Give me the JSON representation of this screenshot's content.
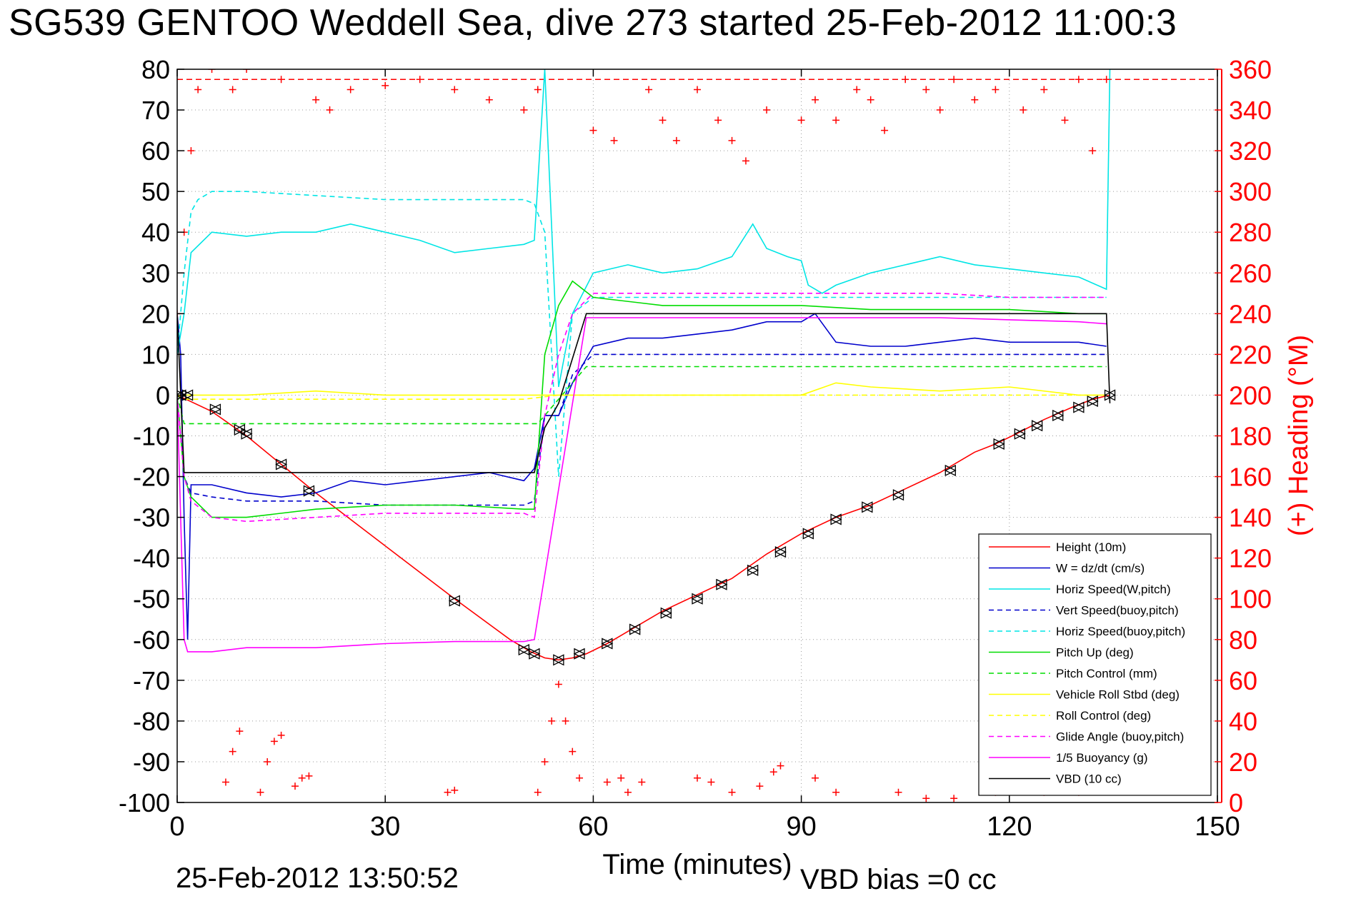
{
  "title": "SG539 GENTOO Weddell Sea, dive 273 started 25-Feb-2012 11:00:3",
  "footer": {
    "timestamp": "25-Feb-2012 13:50:52",
    "vbd_bias": "VBD bias =0 cc"
  },
  "colors": {
    "height": "#ff0000",
    "w": "#0000cc",
    "horiz": "#00e5e5",
    "pitch": "#00dd00",
    "roll": "#ffff00",
    "glide": "#ff00ff",
    "buoy": "#ff00ff",
    "vbd": "#000000",
    "heading": "#ff0000"
  },
  "chart_data": {
    "type": "line",
    "xlabel": "Time (minutes)",
    "ylabel": "",
    "y2label": "(+) Heading (°M)",
    "xlim": [
      0,
      150
    ],
    "ylim": [
      -100,
      80
    ],
    "y2lim": [
      0,
      360
    ],
    "xticks": [
      0,
      30,
      60,
      90,
      120,
      150
    ],
    "yticks": [
      80,
      70,
      60,
      50,
      40,
      30,
      20,
      10,
      0,
      -10,
      -20,
      -30,
      -40,
      -50,
      -60,
      -70,
      -80,
      -90,
      -100
    ],
    "y2ticks": [
      360,
      340,
      320,
      300,
      280,
      260,
      240,
      220,
      200,
      180,
      160,
      140,
      120,
      100,
      80,
      60,
      40,
      20,
      0
    ],
    "grid": true,
    "legend_position": "bottom-right",
    "series": [
      {
        "name": "Height (10m)",
        "key": "height",
        "style": "solid",
        "x": [
          0,
          5,
          10,
          15,
          20,
          30,
          40,
          48,
          51,
          53,
          55,
          57,
          59,
          62,
          66,
          70,
          75,
          80,
          85,
          90,
          95,
          100,
          105,
          110,
          115,
          118,
          121,
          125,
          129,
          132,
          134.5
        ],
        "y": [
          0,
          -4,
          -10,
          -17,
          -24,
          -37,
          -50,
          -60,
          -63,
          -64.5,
          -65,
          -64.5,
          -63.5,
          -61,
          -57,
          -53,
          -49,
          -45,
          -39,
          -34,
          -30,
          -27,
          -23,
          -19,
          -14,
          -12,
          -9.5,
          -6,
          -3,
          -1,
          0
        ]
      },
      {
        "name": "W = dz/dt (cm/s)",
        "key": "w",
        "style": "solid",
        "x": [
          0,
          0.5,
          1,
          1.5,
          2,
          5,
          10,
          15,
          20,
          25,
          30,
          35,
          40,
          45,
          50,
          51.5,
          53,
          55,
          57,
          60,
          65,
          70,
          75,
          80,
          85,
          90,
          92,
          95,
          100,
          105,
          110,
          115,
          120,
          125,
          130,
          134
        ],
        "y": [
          20,
          10,
          -30,
          -60,
          -22,
          -22,
          -24,
          -25,
          -24,
          -21,
          -22,
          -21,
          -20,
          -19,
          -21,
          -18,
          -5,
          -5,
          3,
          12,
          14,
          14,
          15,
          16,
          18,
          18,
          20,
          13,
          12,
          12,
          13,
          14,
          13,
          13,
          13,
          12
        ]
      },
      {
        "name": "Horiz Speed(W,pitch)",
        "key": "horiz",
        "style": "solid",
        "x": [
          0,
          1,
          2,
          5,
          10,
          15,
          20,
          25,
          30,
          35,
          40,
          45,
          50,
          51.5,
          53,
          55,
          57,
          60,
          65,
          70,
          75,
          80,
          83,
          85,
          88,
          90,
          91,
          93,
          95,
          100,
          105,
          110,
          115,
          120,
          125,
          130,
          134,
          134.5
        ],
        "y": [
          10,
          20,
          35,
          40,
          39,
          40,
          40,
          42,
          40,
          38,
          35,
          36,
          37,
          38,
          80,
          2,
          20,
          30,
          32,
          30,
          31,
          34,
          42,
          36,
          34,
          33,
          27,
          25,
          27,
          30,
          32,
          34,
          32,
          31,
          30,
          29,
          26,
          80
        ]
      },
      {
        "name": "Vert Speed(buoy,pitch)",
        "key": "w",
        "style": "dashed",
        "x": [
          0,
          1,
          2,
          5,
          10,
          20,
          30,
          40,
          50,
          51.5,
          53,
          55,
          57,
          60,
          70,
          80,
          90,
          100,
          110,
          120,
          130,
          134
        ],
        "y": [
          0,
          -20,
          -24,
          -25,
          -26,
          -26,
          -27,
          -27,
          -27,
          -26,
          -5,
          -5,
          5,
          10,
          10,
          10,
          10,
          10,
          10,
          10,
          10,
          10
        ]
      },
      {
        "name": "Horiz Speed(buoy,pitch)",
        "key": "horiz",
        "style": "dashed",
        "x": [
          0,
          1,
          2,
          3,
          5,
          10,
          20,
          30,
          40,
          50,
          51.5,
          53,
          55,
          57,
          60,
          70,
          80,
          90,
          100,
          110,
          120,
          130,
          134
        ],
        "y": [
          10,
          30,
          45,
          48,
          50,
          50,
          49,
          48,
          48,
          48,
          47,
          40,
          -20,
          20,
          24,
          24,
          24,
          24,
          24,
          24,
          24,
          24,
          24
        ]
      },
      {
        "name": "Pitch Up (deg)",
        "key": "pitch",
        "style": "solid",
        "x": [
          0,
          1,
          2,
          5,
          10,
          20,
          30,
          40,
          50,
          51.5,
          53,
          55,
          57,
          60,
          70,
          80,
          90,
          100,
          110,
          120,
          130,
          134
        ],
        "y": [
          0,
          -20,
          -25,
          -30,
          -30,
          -28,
          -27,
          -27,
          -28,
          -28,
          10,
          22,
          28,
          24,
          22,
          22,
          22,
          21,
          21,
          21,
          20,
          20
        ]
      },
      {
        "name": "Pitch Control (mm)",
        "key": "pitch",
        "style": "dashed",
        "x": [
          0,
          1,
          50,
          52,
          59,
          134
        ],
        "y": [
          0,
          -7,
          -7,
          -7,
          7,
          7
        ]
      },
      {
        "name": "Vehicle Roll Stbd (deg)",
        "key": "roll",
        "style": "solid",
        "x": [
          0,
          3,
          5,
          10,
          20,
          30,
          40,
          50,
          55,
          60,
          70,
          80,
          90,
          95,
          100,
          110,
          120,
          130,
          134
        ],
        "y": [
          0,
          0,
          0,
          0,
          1,
          0,
          0,
          0,
          0,
          0,
          0,
          0,
          0,
          3,
          2,
          1,
          2,
          0,
          0
        ]
      },
      {
        "name": "Roll Control (deg)",
        "key": "roll",
        "style": "dashed",
        "x": [
          0,
          1,
          5,
          10,
          20,
          30,
          40,
          50,
          55,
          60,
          70,
          80,
          90,
          100,
          110,
          120,
          130,
          134
        ],
        "y": [
          0,
          -1,
          -1,
          -1,
          -1,
          -1,
          -1,
          -1,
          0,
          0,
          0,
          0,
          0,
          0,
          0,
          0,
          0,
          0
        ]
      },
      {
        "name": "Glide Angle (buoy,pitch)",
        "key": "glide",
        "style": "dashed",
        "x": [
          0,
          1,
          2,
          5,
          10,
          20,
          30,
          40,
          50,
          51.5,
          53,
          55,
          57,
          60,
          70,
          80,
          90,
          100,
          110,
          120,
          130,
          134
        ],
        "y": [
          0,
          -20,
          -26,
          -30,
          -31,
          -30,
          -29,
          -29,
          -29,
          -30,
          -5,
          10,
          20,
          25,
          25,
          25,
          25,
          25,
          25,
          24,
          24,
          24
        ]
      },
      {
        "name": "1/5 Buoyancy (g)",
        "key": "buoy",
        "style": "solid",
        "x": [
          0,
          1,
          1.5,
          5,
          10,
          20,
          30,
          40,
          50,
          51.5,
          59,
          60,
          70,
          80,
          90,
          100,
          110,
          120,
          130,
          134
        ],
        "y": [
          0,
          -60,
          -63,
          -63,
          -62,
          -62,
          -61,
          -60.5,
          -60.5,
          -60,
          19,
          19,
          19,
          19,
          19,
          19,
          19,
          18.5,
          18,
          17.5
        ]
      },
      {
        "name": "VBD (10 cc)",
        "key": "vbd",
        "style": "solid",
        "x": [
          0,
          1,
          1.5,
          10,
          20,
          30,
          40,
          50,
          51.5,
          53,
          55,
          59,
          60,
          70,
          80,
          90,
          100,
          110,
          120,
          130,
          134,
          134.5
        ],
        "y": [
          20,
          -19,
          -19,
          -19,
          -19,
          -19,
          -19,
          -19,
          -19,
          -8,
          -2,
          20,
          20,
          20,
          20,
          20,
          20,
          20,
          20,
          20,
          20,
          -2
        ]
      }
    ],
    "heading_points": [
      {
        "x": 0,
        "heading": 240
      },
      {
        "x": 1,
        "heading": 280
      },
      {
        "x": 2,
        "heading": 320
      },
      {
        "x": 3,
        "heading": 350
      },
      {
        "x": 5,
        "heading": 360
      },
      {
        "x": 8,
        "heading": 350
      },
      {
        "x": 10,
        "heading": 360
      },
      {
        "x": 15,
        "heading": 355
      },
      {
        "x": 20,
        "heading": 345
      },
      {
        "x": 22,
        "heading": 340
      },
      {
        "x": 25,
        "heading": 350
      },
      {
        "x": 30,
        "heading": 352
      },
      {
        "x": 35,
        "heading": 355
      },
      {
        "x": 40,
        "heading": 350
      },
      {
        "x": 45,
        "heading": 345
      },
      {
        "x": 50,
        "heading": 340
      },
      {
        "x": 52,
        "heading": 350
      },
      {
        "x": 60,
        "heading": 330
      },
      {
        "x": 63,
        "heading": 325
      },
      {
        "x": 68,
        "heading": 350
      },
      {
        "x": 70,
        "heading": 335
      },
      {
        "x": 72,
        "heading": 325
      },
      {
        "x": 75,
        "heading": 350
      },
      {
        "x": 78,
        "heading": 335
      },
      {
        "x": 80,
        "heading": 325
      },
      {
        "x": 82,
        "heading": 315
      },
      {
        "x": 85,
        "heading": 340
      },
      {
        "x": 90,
        "heading": 335
      },
      {
        "x": 92,
        "heading": 345
      },
      {
        "x": 95,
        "heading": 335
      },
      {
        "x": 98,
        "heading": 350
      },
      {
        "x": 100,
        "heading": 345
      },
      {
        "x": 102,
        "heading": 330
      },
      {
        "x": 105,
        "heading": 355
      },
      {
        "x": 108,
        "heading": 350
      },
      {
        "x": 110,
        "heading": 340
      },
      {
        "x": 112,
        "heading": 355
      },
      {
        "x": 115,
        "heading": 345
      },
      {
        "x": 118,
        "heading": 350
      },
      {
        "x": 122,
        "heading": 340
      },
      {
        "x": 125,
        "heading": 350
      },
      {
        "x": 128,
        "heading": 335
      },
      {
        "x": 130,
        "heading": 355
      },
      {
        "x": 132,
        "heading": 320
      },
      {
        "x": 134,
        "heading": 355
      },
      {
        "x": 7,
        "heading": 10
      },
      {
        "x": 8,
        "heading": 25
      },
      {
        "x": 9,
        "heading": 35
      },
      {
        "x": 12,
        "heading": 5
      },
      {
        "x": 13,
        "heading": 20
      },
      {
        "x": 14,
        "heading": 30
      },
      {
        "x": 15,
        "heading": 33
      },
      {
        "x": 17,
        "heading": 8
      },
      {
        "x": 18,
        "heading": 12
      },
      {
        "x": 19,
        "heading": 13
      },
      {
        "x": 39,
        "heading": 5
      },
      {
        "x": 40,
        "heading": 6
      },
      {
        "x": 52,
        "heading": 5
      },
      {
        "x": 53,
        "heading": 20
      },
      {
        "x": 54,
        "heading": 40
      },
      {
        "x": 55,
        "heading": 58
      },
      {
        "x": 56,
        "heading": 40
      },
      {
        "x": 57,
        "heading": 25
      },
      {
        "x": 58,
        "heading": 12
      },
      {
        "x": 62,
        "heading": 10
      },
      {
        "x": 64,
        "heading": 12
      },
      {
        "x": 65,
        "heading": 5
      },
      {
        "x": 67,
        "heading": 10
      },
      {
        "x": 75,
        "heading": 12
      },
      {
        "x": 77,
        "heading": 10
      },
      {
        "x": 80,
        "heading": 5
      },
      {
        "x": 84,
        "heading": 8
      },
      {
        "x": 86,
        "heading": 15
      },
      {
        "x": 87,
        "heading": 18
      },
      {
        "x": 92,
        "heading": 12
      },
      {
        "x": 95,
        "heading": 5
      },
      {
        "x": 104,
        "heading": 5
      },
      {
        "x": 108,
        "heading": 2
      },
      {
        "x": 112,
        "heading": 2
      },
      {
        "x": 118,
        "heading": 5
      },
      {
        "x": 125,
        "heading": 5
      },
      {
        "x": 130,
        "heading": 5
      }
    ],
    "heading_reference": 355,
    "markers": [
      {
        "x": 0.5,
        "y": 0
      },
      {
        "x": 1.5,
        "y": 0
      },
      {
        "x": 5.5,
        "y": -3.5
      },
      {
        "x": 9,
        "y": -8.5
      },
      {
        "x": 10,
        "y": -9.5
      },
      {
        "x": 15,
        "y": -17
      },
      {
        "x": 19,
        "y": -23.5
      },
      {
        "x": 40,
        "y": -50.5
      },
      {
        "x": 50,
        "y": -62.5
      },
      {
        "x": 51.5,
        "y": -63.5
      },
      {
        "x": 55,
        "y": -65
      },
      {
        "x": 58,
        "y": -63.5
      },
      {
        "x": 62,
        "y": -61
      },
      {
        "x": 66,
        "y": -57.5
      },
      {
        "x": 70.5,
        "y": -53.5
      },
      {
        "x": 75,
        "y": -50
      },
      {
        "x": 78.5,
        "y": -46.5
      },
      {
        "x": 83,
        "y": -43
      },
      {
        "x": 87,
        "y": -38.5
      },
      {
        "x": 91,
        "y": -34
      },
      {
        "x": 95,
        "y": -30.5
      },
      {
        "x": 99.5,
        "y": -27.5
      },
      {
        "x": 104,
        "y": -24.5
      },
      {
        "x": 111.5,
        "y": -18.5
      },
      {
        "x": 118.5,
        "y": -12
      },
      {
        "x": 121.5,
        "y": -9.5
      },
      {
        "x": 124,
        "y": -7.5
      },
      {
        "x": 127,
        "y": -5
      },
      {
        "x": 130,
        "y": -3
      },
      {
        "x": 132,
        "y": -1.5
      },
      {
        "x": 134.5,
        "y": 0
      }
    ]
  }
}
